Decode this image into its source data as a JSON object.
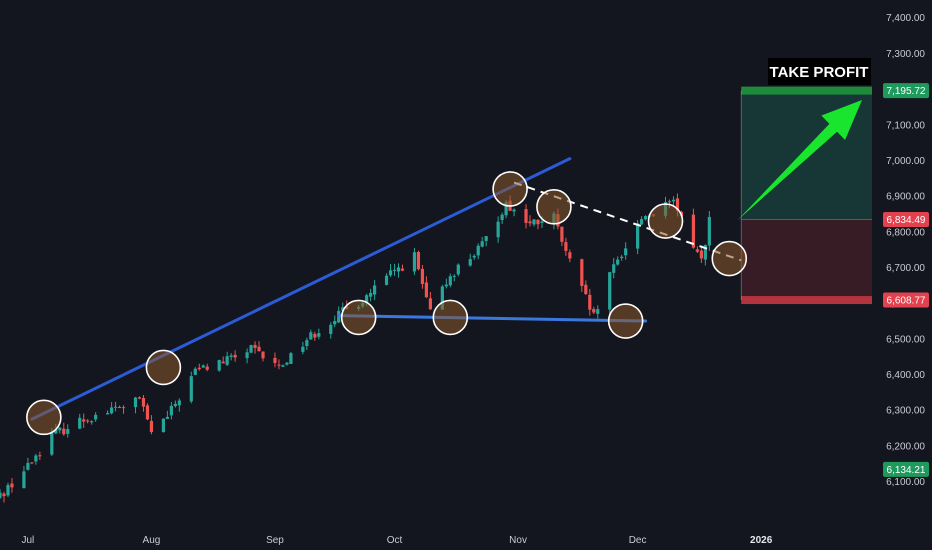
{
  "chart_data": {
    "type": "candlestick",
    "x_ticks": [
      "Jul",
      "Aug",
      "Sep",
      "Oct",
      "Nov",
      "Dec",
      "2026"
    ],
    "y_ticks": [
      "6,100.00",
      "6,200.00",
      "6,300.00",
      "6,400.00",
      "6,500.00",
      "6,600.00",
      "6,700.00",
      "6,800.00",
      "6,900.00",
      "7,000.00",
      "7,100.00",
      "7,200.00",
      "7,300.00",
      "7,400.00"
    ],
    "ylim": [
      6040,
      7430
    ],
    "price_labels": {
      "take_profit": "7,195.72",
      "current": "6,834.49",
      "stop": "6,608.77",
      "low_marker": "6,134.21"
    },
    "levels": {
      "take_profit": 7195.72,
      "current": 6834.49,
      "stop": 6608.77,
      "low_marker": 6134.21
    },
    "annotation_text": "TAKE PROFIT",
    "candles_anchor_path": [
      [
        "2025-06-23",
        6050
      ],
      [
        "2025-06-30",
        6130
      ],
      [
        "2025-07-07",
        6230
      ],
      [
        "2025-07-15",
        6275
      ],
      [
        "2025-07-22",
        6300
      ],
      [
        "2025-07-29",
        6330
      ],
      [
        "2025-08-01",
        6240
      ],
      [
        "2025-08-05",
        6280
      ],
      [
        "2025-08-12",
        6410
      ],
      [
        "2025-08-20",
        6440
      ],
      [
        "2025-08-26",
        6470
      ],
      [
        "2025-09-02",
        6420
      ],
      [
        "2025-09-09",
        6500
      ],
      [
        "2025-09-16",
        6560
      ],
      [
        "2025-09-23",
        6610
      ],
      [
        "2025-09-30",
        6680
      ],
      [
        "2025-10-06",
        6730
      ],
      [
        "2025-10-10",
        6570
      ],
      [
        "2025-10-15",
        6680
      ],
      [
        "2025-10-23",
        6760
      ],
      [
        "2025-10-29",
        6880
      ],
      [
        "2025-11-04",
        6820
      ],
      [
        "2025-11-10",
        6840
      ],
      [
        "2025-11-13",
        6740
      ],
      [
        "2025-11-20",
        6560
      ],
      [
        "2025-11-25",
        6700
      ],
      [
        "2025-12-02",
        6840
      ],
      [
        "2025-12-10",
        6880
      ],
      [
        "2025-12-17",
        6720
      ],
      [
        "2025-12-19",
        6834
      ]
    ],
    "trendlines": {
      "rising_support": [
        [
          "2025-07-02",
          6275
        ],
        [
          "2025-11-14",
          7005
        ]
      ],
      "horizontal_support": [
        [
          "2025-09-17",
          6565
        ],
        [
          "2025-12-03",
          6550
        ]
      ],
      "descending_dashed": [
        [
          "2025-10-31",
          6938
        ],
        [
          "2025-12-27",
          6720
        ]
      ]
    },
    "highlight_circles": [
      [
        "2025-07-05",
        6280
      ],
      [
        "2025-08-04",
        6420
      ],
      [
        "2025-09-22",
        6560
      ],
      [
        "2025-10-15",
        6560
      ],
      [
        "2025-10-30",
        6920
      ],
      [
        "2025-11-10",
        6870
      ],
      [
        "2025-11-28",
        6550
      ],
      [
        "2025-12-08",
        6830
      ],
      [
        "2025-12-24",
        6725
      ]
    ]
  }
}
